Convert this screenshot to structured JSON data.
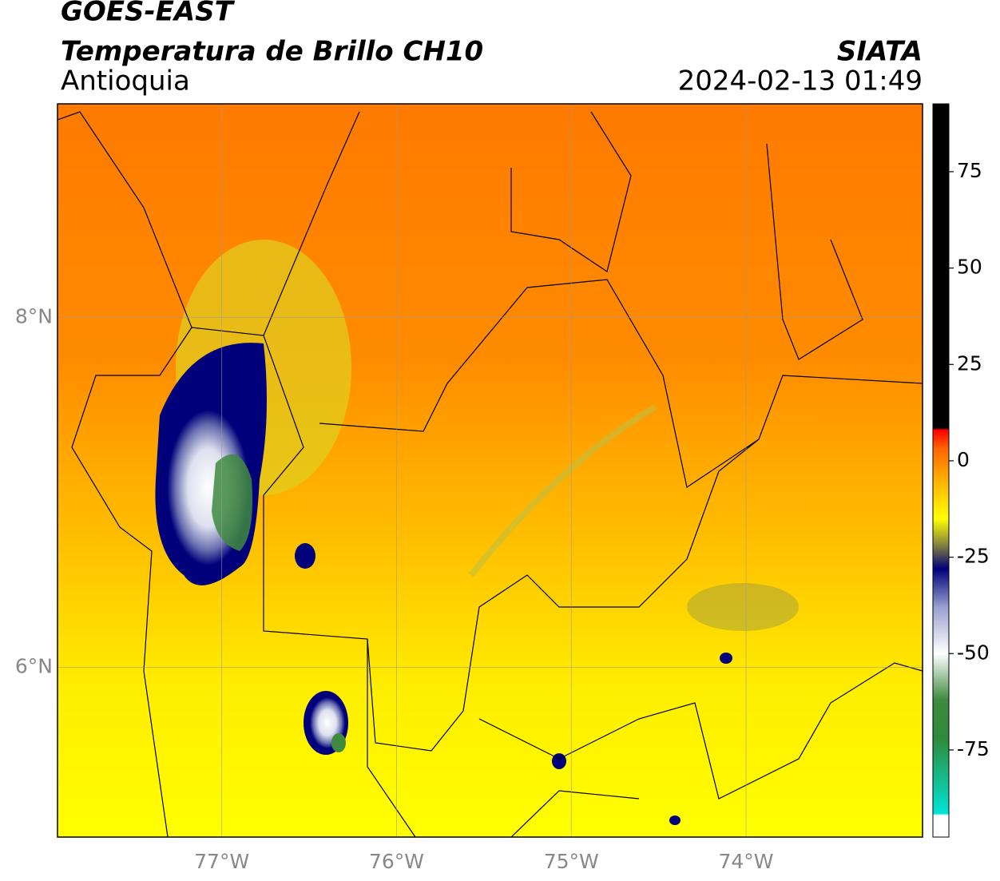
{
  "header": {
    "title": "GOES-EAST",
    "subtitle": "Temperatura de Brillo CH10",
    "region": "Antioquia",
    "source": "SIATA",
    "datetime": "2024-02-13 01:49"
  },
  "map": {
    "xlim": [
      -77.94,
      -72.99
    ],
    "ylim": [
      5.03,
      9.22
    ],
    "xticks": [
      {
        "value": -77,
        "label": "77°W"
      },
      {
        "value": -76,
        "label": "76°W"
      },
      {
        "value": -75,
        "label": "75°W"
      },
      {
        "value": -74,
        "label": "74°W"
      }
    ],
    "yticks": [
      {
        "value": 8,
        "label": "8°N"
      },
      {
        "value": 6,
        "label": "6°N"
      }
    ],
    "grid": true
  },
  "colorbar": {
    "clim": [
      -97.6,
      92.6
    ],
    "ticks": [
      75,
      50,
      25,
      0,
      -25,
      -50,
      -75
    ],
    "stops": [
      {
        "value": -97.6,
        "color": "#ffffff"
      },
      {
        "value": -92,
        "color": "#ffffff"
      },
      {
        "value": -91.5,
        "color": "#00e5d5"
      },
      {
        "value": -72,
        "color": "#2e8b3a"
      },
      {
        "value": -62,
        "color": "#3f8a3f"
      },
      {
        "value": -50,
        "color": "#ffffff"
      },
      {
        "value": -38,
        "color": "#9aa0d0"
      },
      {
        "value": -28,
        "color": "#00007a"
      },
      {
        "value": -22,
        "color": "#808040"
      },
      {
        "value": -15,
        "color": "#ffff00"
      },
      {
        "value": -5,
        "color": "#ffb000"
      },
      {
        "value": 3,
        "color": "#ff6600"
      },
      {
        "value": 8,
        "color": "#ff0000"
      },
      {
        "value": 8.5,
        "color": "#000000"
      },
      {
        "value": 92.6,
        "color": "#000000"
      }
    ]
  }
}
